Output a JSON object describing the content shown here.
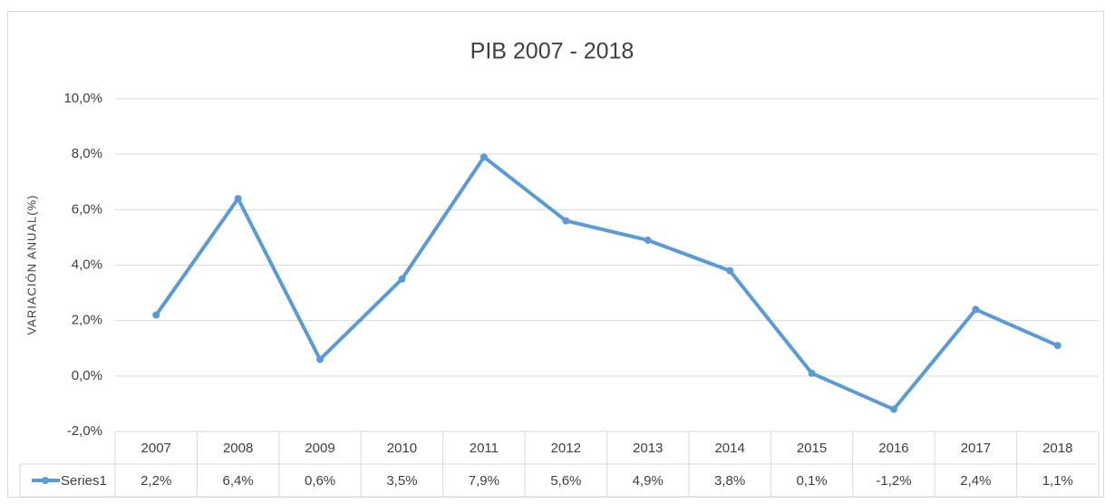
{
  "chart_data": {
    "type": "line",
    "title": "PIB  2007  -  2018",
    "y_label": "VARIACIÓN ANUAL(%)",
    "categories": [
      "2007",
      "2008",
      "2009",
      "2010",
      "2011",
      "2012",
      "2013",
      "2014",
      "2015",
      "2016",
      "2017",
      "2018"
    ],
    "series": [
      {
        "name": "Series1",
        "color": "#5b9bd5",
        "values": [
          2.2,
          6.4,
          0.6,
          3.5,
          7.9,
          5.6,
          4.9,
          3.8,
          0.1,
          -1.2,
          2.4,
          1.1
        ],
        "value_labels": [
          "2,2%",
          "6,4%",
          "0,6%",
          "3,5%",
          "7,9%",
          "5,6%",
          "4,9%",
          "3,8%",
          "0,1%",
          "-1,2%",
          "2,4%",
          "1,1%"
        ]
      }
    ],
    "ylim": [
      -2,
      10
    ],
    "yticks": [
      {
        "value": -2,
        "label": "-2,0%"
      },
      {
        "value": 0,
        "label": "0,0%"
      },
      {
        "value": 2,
        "label": "2,0%"
      },
      {
        "value": 4,
        "label": "4,0%"
      },
      {
        "value": 6,
        "label": "6,0%"
      },
      {
        "value": 8,
        "label": "8,0%"
      },
      {
        "value": 10,
        "label": "10,0%"
      }
    ],
    "grid": true
  }
}
